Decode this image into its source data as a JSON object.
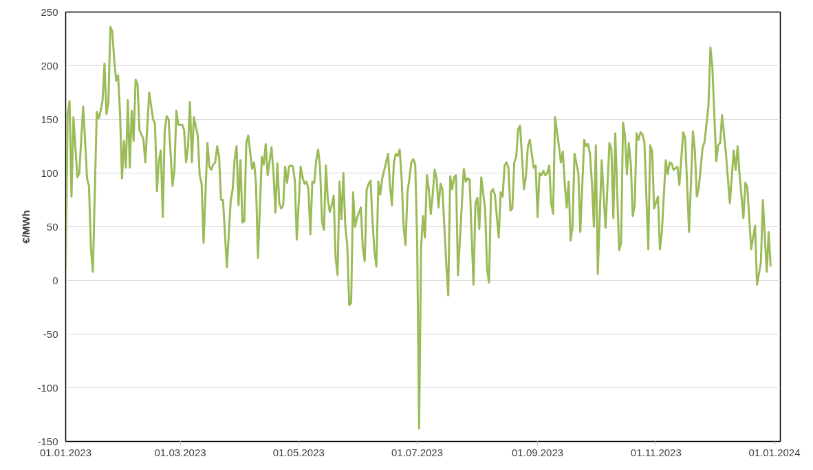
{
  "chart_data": {
    "type": "line",
    "ylabel": "€/MWh",
    "grid": "y",
    "line_style": "solid",
    "xlim": [
      "2023-01-01",
      "2024-01-04"
    ],
    "xticks": [
      {
        "value": "2023-01-01",
        "label": "01.01.2023"
      },
      {
        "value": "2023-03-01",
        "label": "01.03.2023"
      },
      {
        "value": "2023-05-01",
        "label": "01.05.2023"
      },
      {
        "value": "2023-07-01",
        "label": "01.07.2023"
      },
      {
        "value": "2023-09-01",
        "label": "01.09.2023"
      },
      {
        "value": "2023-11-01",
        "label": "01.11.2023"
      },
      {
        "value": "2024-01-01",
        "label": "01.01.2024"
      }
    ],
    "ylim": [
      -150,
      250
    ],
    "yticks": [
      -150,
      -100,
      -50,
      0,
      50,
      100,
      150,
      200,
      250
    ],
    "series": [
      {
        "color": "#9bbb59",
        "x": [
          "2023-01-01",
          "2023-01-02",
          "2023-01-03",
          "2023-01-04",
          "2023-01-05",
          "2023-01-07",
          "2023-01-08",
          "2023-01-10",
          "2023-01-11",
          "2023-01-12",
          "2023-01-13",
          "2023-01-14",
          "2023-01-15",
          "2023-01-17",
          "2023-01-18",
          "2023-01-19",
          "2023-01-20",
          "2023-01-21",
          "2023-01-22",
          "2023-01-23",
          "2023-01-24",
          "2023-01-25",
          "2023-01-26",
          "2023-01-27",
          "2023-01-28",
          "2023-01-29",
          "2023-01-30",
          "2023-01-31",
          "2023-02-01",
          "2023-02-02",
          "2023-02-03",
          "2023-02-04",
          "2023-02-05",
          "2023-02-06",
          "2023-02-07",
          "2023-02-08",
          "2023-02-10",
          "2023-02-11",
          "2023-02-13",
          "2023-02-15",
          "2023-02-16",
          "2023-02-17",
          "2023-02-18",
          "2023-02-19",
          "2023-02-20",
          "2023-02-21",
          "2023-02-22",
          "2023-02-23",
          "2023-02-25",
          "2023-02-26",
          "2023-02-27",
          "2023-02-28",
          "2023-03-02",
          "2023-03-03",
          "2023-03-04",
          "2023-03-05",
          "2023-03-06",
          "2023-03-07",
          "2023-03-08",
          "2023-03-10",
          "2023-03-11",
          "2023-03-12",
          "2023-03-13",
          "2023-03-15",
          "2023-03-16",
          "2023-03-17",
          "2023-03-18",
          "2023-03-19",
          "2023-03-20",
          "2023-03-21",
          "2023-03-22",
          "2023-03-23",
          "2023-03-25",
          "2023-03-27",
          "2023-03-28",
          "2023-03-29",
          "2023-03-30",
          "2023-03-31",
          "2023-04-01",
          "2023-04-02",
          "2023-04-03",
          "2023-04-04",
          "2023-04-05",
          "2023-04-07",
          "2023-04-08",
          "2023-04-09",
          "2023-04-10",
          "2023-04-12",
          "2023-04-13",
          "2023-04-14",
          "2023-04-15",
          "2023-04-17",
          "2023-04-18",
          "2023-04-19",
          "2023-04-20",
          "2023-04-21",
          "2023-04-22",
          "2023-04-23",
          "2023-04-24",
          "2023-04-25",
          "2023-04-26",
          "2023-04-27",
          "2023-04-28",
          "2023-04-29",
          "2023-04-30",
          "2023-05-02",
          "2023-05-03",
          "2023-05-04",
          "2023-05-05",
          "2023-05-06",
          "2023-05-07",
          "2023-05-08",
          "2023-05-09",
          "2023-05-10",
          "2023-05-11",
          "2023-05-12",
          "2023-05-13",
          "2023-05-14",
          "2023-05-15",
          "2023-05-16",
          "2023-05-17",
          "2023-05-18",
          "2023-05-19",
          "2023-05-20",
          "2023-05-21",
          "2023-05-22",
          "2023-05-23",
          "2023-05-24",
          "2023-05-25",
          "2023-05-26",
          "2023-05-27",
          "2023-05-28",
          "2023-05-29",
          "2023-05-30",
          "2023-05-31",
          "2023-06-02",
          "2023-06-03",
          "2023-06-04",
          "2023-06-05",
          "2023-06-06",
          "2023-06-07",
          "2023-06-08",
          "2023-06-09",
          "2023-06-10",
          "2023-06-11",
          "2023-06-12",
          "2023-06-13",
          "2023-06-15",
          "2023-06-16",
          "2023-06-17",
          "2023-06-18",
          "2023-06-19",
          "2023-06-20",
          "2023-06-21",
          "2023-06-22",
          "2023-06-23",
          "2023-06-24",
          "2023-06-25",
          "2023-06-26",
          "2023-06-27",
          "2023-06-28",
          "2023-06-29",
          "2023-06-30",
          "2023-07-01",
          "2023-07-02",
          "2023-07-03",
          "2023-07-04",
          "2023-07-05",
          "2023-07-06",
          "2023-07-07",
          "2023-07-08",
          "2023-07-09",
          "2023-07-10",
          "2023-07-11",
          "2023-07-12",
          "2023-07-13",
          "2023-07-14",
          "2023-07-16",
          "2023-07-17",
          "2023-07-18",
          "2023-07-19",
          "2023-07-20",
          "2023-07-21",
          "2023-07-22",
          "2023-07-25",
          "2023-07-26",
          "2023-07-27",
          "2023-07-28",
          "2023-07-30",
          "2023-07-31",
          "2023-08-01",
          "2023-08-02",
          "2023-08-03",
          "2023-08-05",
          "2023-08-06",
          "2023-08-07",
          "2023-08-08",
          "2023-08-09",
          "2023-08-10",
          "2023-08-12",
          "2023-08-13",
          "2023-08-14",
          "2023-08-15",
          "2023-08-16",
          "2023-08-17",
          "2023-08-18",
          "2023-08-19",
          "2023-08-20",
          "2023-08-21",
          "2023-08-22",
          "2023-08-23",
          "2023-08-25",
          "2023-08-26",
          "2023-08-27",
          "2023-08-28",
          "2023-08-30",
          "2023-08-31",
          "2023-09-01",
          "2023-09-02",
          "2023-09-03",
          "2023-09-04",
          "2023-09-05",
          "2023-09-06",
          "2023-09-07",
          "2023-09-08",
          "2023-09-09",
          "2023-09-10",
          "2023-09-12",
          "2023-09-13",
          "2023-09-14",
          "2023-09-15",
          "2023-09-16",
          "2023-09-17",
          "2023-09-18",
          "2023-09-19",
          "2023-09-20",
          "2023-09-22",
          "2023-09-23",
          "2023-09-25",
          "2023-09-26",
          "2023-09-27",
          "2023-09-28",
          "2023-09-29",
          "2023-09-30",
          "2023-10-01",
          "2023-10-02",
          "2023-10-04",
          "2023-10-06",
          "2023-10-08",
          "2023-10-09",
          "2023-10-10",
          "2023-10-11",
          "2023-10-13",
          "2023-10-14",
          "2023-10-15",
          "2023-10-16",
          "2023-10-17",
          "2023-10-18",
          "2023-10-19",
          "2023-10-20",
          "2023-10-21",
          "2023-10-22",
          "2023-10-23",
          "2023-10-24",
          "2023-10-25",
          "2023-10-26",
          "2023-10-28",
          "2023-10-29",
          "2023-10-30",
          "2023-10-31",
          "2023-11-02",
          "2023-11-03",
          "2023-11-04",
          "2023-11-06",
          "2023-11-07",
          "2023-11-08",
          "2023-11-09",
          "2023-11-10",
          "2023-11-12",
          "2023-11-13",
          "2023-11-15",
          "2023-11-16",
          "2023-11-18",
          "2023-11-20",
          "2023-11-21",
          "2023-11-22",
          "2023-11-23",
          "2023-11-25",
          "2023-11-26",
          "2023-11-28",
          "2023-11-29",
          "2023-11-30",
          "2023-12-02",
          "2023-12-03",
          "2023-12-04",
          "2023-12-05",
          "2023-12-07",
          "2023-12-09",
          "2023-12-11",
          "2023-12-12",
          "2023-12-13",
          "2023-12-14",
          "2023-12-16",
          "2023-12-17",
          "2023-12-18",
          "2023-12-20",
          "2023-12-22",
          "2023-12-23",
          "2023-12-25",
          "2023-12-26",
          "2023-12-28",
          "2023-12-29",
          "2023-12-30"
        ],
        "values": [
          10,
          155,
          167,
          78,
          152,
          96,
          100,
          162,
          130,
          95,
          88,
          30,
          8,
          157,
          151,
          158,
          168,
          202,
          155,
          166,
          236,
          232,
          205,
          186,
          191,
          155,
          95,
          130,
          105,
          168,
          105,
          158,
          130,
          187,
          183,
          140,
          132,
          110,
          175,
          150,
          146,
          83,
          112,
          121,
          59,
          140,
          153,
          150,
          88,
          103,
          158,
          145,
          145,
          140,
          110,
          125,
          166,
          110,
          152,
          135,
          98,
          90,
          35,
          128,
          106,
          103,
          108,
          110,
          125,
          115,
          75,
          75,
          12,
          75,
          85,
          113,
          125,
          70,
          112,
          54,
          55,
          128,
          135,
          104,
          110,
          90,
          21,
          115,
          108,
          127,
          98,
          124,
          100,
          63,
          109,
          72,
          67,
          70,
          106,
          91,
          106,
          107,
          106,
          93,
          38,
          106,
          96,
          90,
          92,
          85,
          43,
          92,
          91,
          112,
          122,
          105,
          55,
          47,
          107,
          75,
          64,
          70,
          79,
          21,
          5,
          92,
          57,
          100,
          50,
          33,
          -23,
          -21,
          82,
          50,
          58,
          68,
          30,
          18,
          85,
          90,
          93,
          55,
          27,
          13,
          92,
          80,
          95,
          110,
          118,
          88,
          70,
          110,
          118,
          116,
          122,
          95,
          50,
          33,
          82,
          95,
          110,
          113,
          108,
          35,
          -138,
          30,
          60,
          40,
          98,
          85,
          62,
          80,
          103,
          95,
          68,
          90,
          85,
          15,
          -14,
          97,
          85,
          96,
          98,
          5,
          104,
          92,
          95,
          94,
          -4,
          72,
          77,
          48,
          96,
          66,
          10,
          -2,
          82,
          85,
          80,
          40,
          82,
          78,
          107,
          110,
          105,
          65,
          67,
          110,
          115,
          141,
          144,
          85,
          97,
          125,
          131,
          105,
          107,
          59,
          100,
          98,
          102,
          98,
          100,
          107,
          72,
          62,
          152,
          125,
          110,
          120,
          90,
          68,
          92,
          37,
          50,
          118,
          100,
          45,
          131,
          125,
          127,
          118,
          90,
          50,
          126,
          6,
          112,
          49,
          128,
          122,
          58,
          137,
          28,
          35,
          147,
          135,
          99,
          128,
          109,
          60,
          70,
          137,
          131,
          138,
          136,
          129,
          29,
          126,
          120,
          67,
          78,
          29,
          45,
          112,
          99,
          110,
          109,
          103,
          106,
          89,
          138,
          133,
          45,
          139,
          121,
          78,
          86,
          124,
          129,
          163,
          217,
          199,
          111,
          126,
          128,
          154,
          118,
          72,
          121,
          103,
          125,
          99,
          58,
          91,
          87,
          29,
          51,
          -4,
          17,
          75,
          8,
          45,
          13
        ]
      }
    ]
  }
}
